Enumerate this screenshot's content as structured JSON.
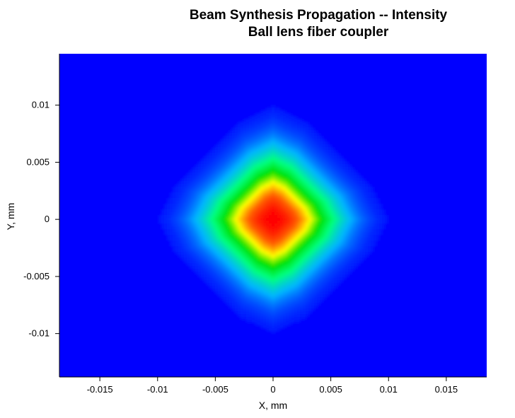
{
  "chart_data": {
    "type": "heatmap",
    "title": "Beam Synthesis Propagation -- Intensity",
    "subtitle": "Ball lens fiber coupler",
    "xlabel": "X, mm",
    "ylabel": "Y, mm",
    "xlim": [
      -0.0185,
      0.0185
    ],
    "ylim": [
      -0.0138,
      0.0145
    ],
    "x_ticks": [
      -0.015,
      -0.01,
      -0.005,
      0,
      0.005,
      0.01,
      0.015
    ],
    "x_tick_labels": [
      "-0.015",
      "-0.01",
      "-0.005",
      "0",
      "0.005",
      "0.01",
      "0.015"
    ],
    "y_ticks": [
      0.01,
      0.005,
      0,
      -0.005,
      -0.01
    ],
    "y_tick_labels": [
      "0.01",
      "0.005",
      "0",
      "-0.005",
      "-0.01"
    ],
    "colormap": [
      "#0000ff",
      "#00b4ff",
      "#00ff80",
      "#00e000",
      "#ffff00",
      "#ff6000",
      "#ff0000"
    ],
    "beam": {
      "center_x": 0,
      "center_y": 0,
      "peak_intensity": 1.0,
      "width_mm": 0.0045
    },
    "grid": false,
    "legend": "none"
  }
}
